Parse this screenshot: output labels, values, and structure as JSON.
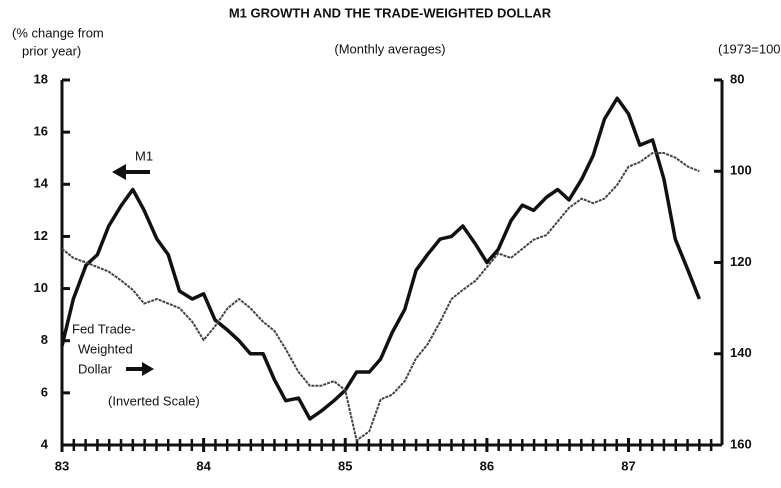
{
  "chart_data": {
    "type": "line",
    "title": "M1 GROWTH AND THE TRADE-WEIGHTED DOLLAR",
    "subtitle": "(Monthly averages)",
    "ylabel_lines": [
      "(% change from",
      "prior year)"
    ],
    "y2label": "(1973=100)",
    "annotations": [
      "(Inverted Scale)"
    ],
    "x": [
      83.0,
      83.08,
      83.17,
      83.25,
      83.33,
      83.42,
      83.5,
      83.58,
      83.67,
      83.75,
      83.83,
      83.92,
      84.0,
      84.08,
      84.17,
      84.25,
      84.33,
      84.42,
      84.5,
      84.58,
      84.67,
      84.75,
      84.83,
      84.92,
      85.0,
      85.08,
      85.17,
      85.25,
      85.33,
      85.42,
      85.5,
      85.58,
      85.67,
      85.75,
      85.83,
      85.92,
      86.0,
      86.08,
      86.17,
      86.25,
      86.33,
      86.42,
      86.5,
      86.58,
      86.67,
      86.75,
      86.83,
      86.92,
      87.0,
      87.08,
      87.17,
      87.25,
      87.33,
      87.42,
      87.5
    ],
    "series": [
      {
        "name": "M1",
        "color": "#111111",
        "axis": "y",
        "values": [
          7.8,
          9.6,
          10.9,
          11.3,
          12.4,
          13.2,
          13.8,
          13.0,
          11.9,
          11.3,
          9.9,
          9.6,
          9.8,
          8.8,
          8.4,
          8.0,
          7.5,
          7.5,
          6.5,
          5.7,
          5.8,
          5.0,
          5.3,
          5.7,
          6.1,
          6.8,
          6.8,
          7.3,
          8.3,
          9.2,
          10.7,
          11.3,
          11.9,
          12.0,
          12.4,
          11.7,
          11.0,
          11.5,
          12.6,
          13.2,
          13.0,
          13.5,
          13.8,
          13.4,
          14.2,
          15.1,
          16.5,
          17.3,
          16.7,
          15.5,
          15.7,
          14.2,
          11.9,
          10.7,
          9.6
        ]
      },
      {
        "name_lines": [
          "Fed Trade-",
          "Weighted",
          "Dollar"
        ],
        "color": "#444444",
        "axis": "y2",
        "values": [
          117,
          119,
          120,
          121,
          122,
          124,
          126,
          129,
          128,
          129,
          130,
          133,
          137,
          134,
          130,
          128,
          130,
          133,
          135,
          139,
          144,
          147,
          147,
          146,
          148,
          159,
          157,
          150,
          149,
          146,
          141,
          138,
          133,
          128,
          126,
          124,
          121,
          118,
          119,
          117,
          115,
          114,
          111,
          108,
          106,
          107,
          106,
          103,
          99,
          98,
          96,
          96,
          97,
          99,
          100
        ]
      }
    ],
    "xlim": [
      83,
      87.66
    ],
    "xticks": [
      83,
      84,
      85,
      86,
      87
    ],
    "ylim": [
      4,
      18
    ],
    "yticks": [
      4,
      6,
      8,
      10,
      12,
      14,
      16,
      18
    ],
    "y2lim": [
      160,
      80
    ],
    "y2ticks": [
      80,
      100,
      120,
      140,
      160
    ]
  }
}
